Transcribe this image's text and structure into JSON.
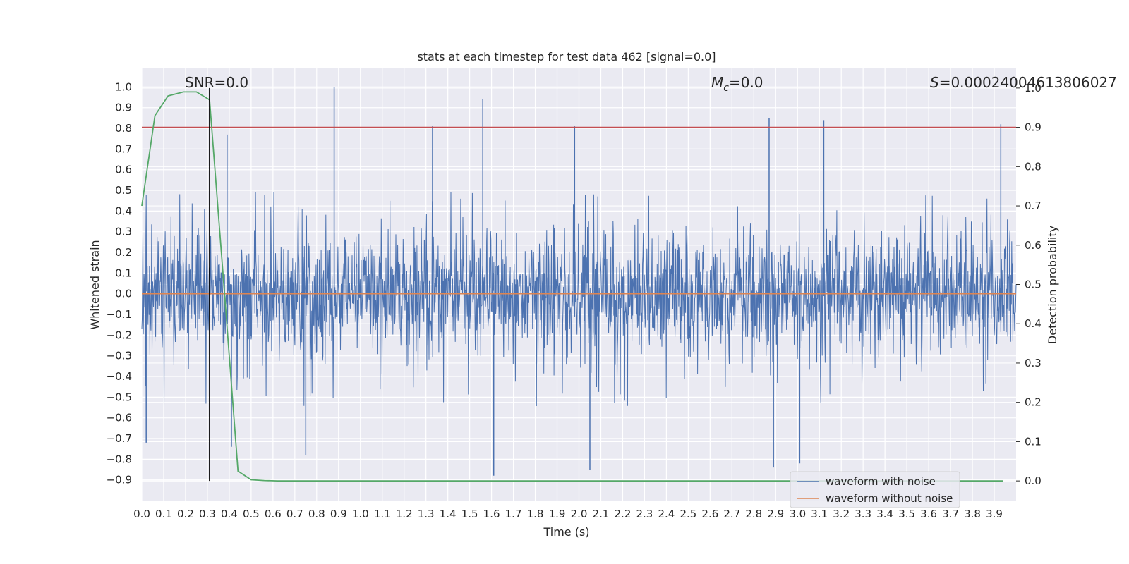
{
  "chart_data": {
    "type": "line",
    "title": "stats at each timestep for test data 462 [signal=0.0]",
    "xlabel": "Time (s)",
    "ylabel": "Whitened strain",
    "y2label": "Detection probability",
    "xlim": [
      0.0,
      4.0
    ],
    "ylim": [
      -1.0,
      1.09
    ],
    "y2lim": [
      -0.05,
      1.05
    ],
    "x_ticks": [
      "0.0",
      "0.1",
      "0.2",
      "0.3",
      "0.4",
      "0.5",
      "0.6",
      "0.7",
      "0.8",
      "0.9",
      "1.0",
      "1.1",
      "1.2",
      "1.3",
      "1.4",
      "1.5",
      "1.6",
      "1.7",
      "1.8",
      "1.9",
      "2.0",
      "2.1",
      "2.2",
      "2.3",
      "2.4",
      "2.5",
      "2.6",
      "2.7",
      "2.8",
      "2.9",
      "3.0",
      "3.1",
      "3.2",
      "3.3",
      "3.4",
      "3.5",
      "3.6",
      "3.7",
      "3.8",
      "3.9"
    ],
    "y_ticks": [
      "1.0",
      "0.9",
      "0.8",
      "0.7",
      "0.6",
      "0.5",
      "0.4",
      "0.3",
      "0.2",
      "0.1",
      "0.0",
      "−0.1",
      "−0.2",
      "−0.3",
      "−0.4",
      "−0.5",
      "−0.6",
      "−0.7",
      "−0.8",
      "−0.9"
    ],
    "y2_ticks": [
      "1.0",
      "0.9",
      "0.8",
      "0.7",
      "0.6",
      "0.5",
      "0.4",
      "0.3",
      "0.2",
      "0.1",
      "0.0"
    ],
    "grid": true,
    "legend_position": "lower-right",
    "annotations": {
      "snr": "SNR=0.0",
      "mc_symbol": "M",
      "mc_subscript": "c",
      "mc_value": "=0.0",
      "s_symbol": "S",
      "s_value": "=0.00024004613806027"
    },
    "marker_line_x": 0.31,
    "threshold_probability": 0.9,
    "noise_spikes": [
      {
        "x": 0.88,
        "y": 1.0
      },
      {
        "x": 1.56,
        "y": 0.94
      },
      {
        "x": 0.39,
        "y": 0.77
      },
      {
        "x": 1.33,
        "y": 0.81
      },
      {
        "x": 1.98,
        "y": 0.81
      },
      {
        "x": 2.87,
        "y": 0.85
      },
      {
        "x": 3.12,
        "y": 0.84
      },
      {
        "x": 3.93,
        "y": 0.82
      },
      {
        "x": 1.61,
        "y": -0.88
      },
      {
        "x": 2.05,
        "y": -0.85
      },
      {
        "x": 2.89,
        "y": -0.84
      },
      {
        "x": 3.01,
        "y": -0.82
      },
      {
        "x": 0.02,
        "y": -0.72
      },
      {
        "x": 0.41,
        "y": -0.74
      },
      {
        "x": 0.75,
        "y": -0.78
      }
    ],
    "series": [
      {
        "name": "waveform with noise",
        "color": "#4c72b0",
        "envelope_upper": 0.3,
        "envelope_lower": -0.3,
        "extreme_upper": 0.45,
        "extreme_lower": -0.5
      },
      {
        "name": "waveform without noise",
        "color": "#dd8452",
        "x": [
          0.0,
          4.0
        ],
        "y": [
          0.0,
          0.0
        ]
      },
      {
        "name": "",
        "color": "#55a868",
        "axis": "y2",
        "x": [
          0.0,
          0.06,
          0.12,
          0.19,
          0.25,
          0.31,
          0.375,
          0.44,
          0.5,
          0.56,
          0.62,
          1.0,
          2.0,
          3.0,
          3.94
        ],
        "y": [
          0.7,
          0.93,
          0.98,
          0.99,
          0.99,
          0.97,
          0.5,
          0.025,
          0.003,
          0.001,
          0.0,
          0.0,
          0.0,
          0.0,
          0.0
        ]
      },
      {
        "name": "",
        "color": "#c44e52",
        "axis": "y2",
        "x": [
          0.0,
          4.0
        ],
        "y": [
          0.9,
          0.9
        ]
      }
    ]
  }
}
